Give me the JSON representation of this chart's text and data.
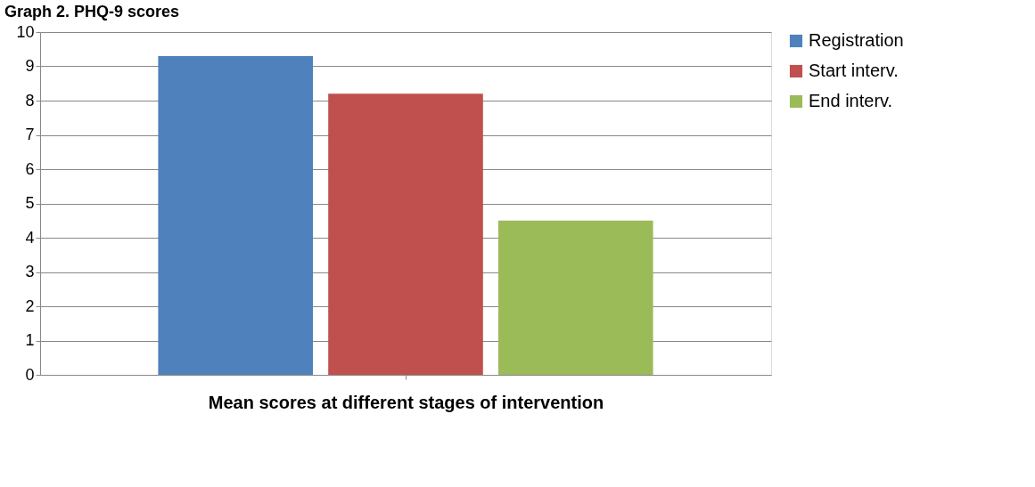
{
  "chart_data": {
    "type": "bar",
    "title": "Graph 2. PHQ-9 scores",
    "xlabel": "Mean scores at different stages of intervention",
    "categories": [
      null
    ],
    "series": [
      {
        "name": "Registration",
        "color": "#4f81bd",
        "values": [
          9.3
        ]
      },
      {
        "name": "Start interv.",
        "color": "#c0504d",
        "values": [
          8.2
        ]
      },
      {
        "name": "End interv.",
        "color": "#9bbb59",
        "values": [
          4.5
        ]
      }
    ],
    "ylim": [
      0,
      10
    ],
    "yticks": [
      0,
      1,
      2,
      3,
      4,
      5,
      6,
      7,
      8,
      9,
      10
    ],
    "grid": "y",
    "legend": "right"
  }
}
